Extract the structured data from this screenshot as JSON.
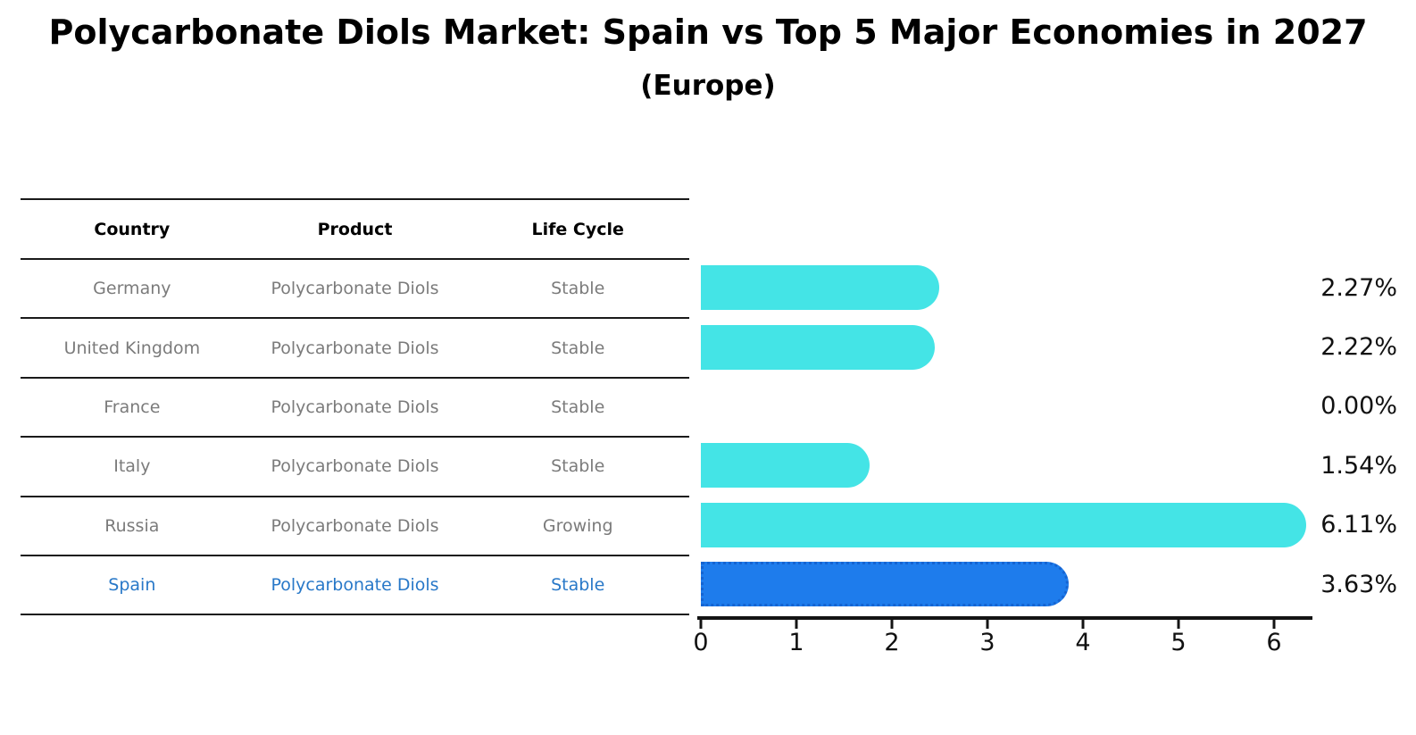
{
  "title": "Polycarbonate Diols Market: Spain vs Top 5 Major Economies in 2027",
  "subtitle": "(Europe)",
  "table": {
    "columns": [
      "Country",
      "Product",
      "Life Cycle"
    ]
  },
  "chart_data": {
    "type": "bar",
    "orientation": "horizontal",
    "title": "Polycarbonate Diols Market: Spain vs Top 5 Major Economies in 2027",
    "subtitle": "(Europe)",
    "x_axis": {
      "tick_labels": [
        "0",
        "1",
        "2",
        "3",
        "4",
        "5",
        "6"
      ],
      "tick_values": [
        0,
        1,
        2,
        3,
        4,
        5,
        6
      ],
      "min": 0,
      "max": 6.4,
      "grid": false
    },
    "rows": [
      {
        "country": "Germany",
        "product": "Polycarbonate Diols",
        "life_cycle": "Stable",
        "value": 2.27,
        "value_label": "2.27%",
        "highlight": false
      },
      {
        "country": "United Kingdom",
        "product": "Polycarbonate Diols",
        "life_cycle": "Stable",
        "value": 2.22,
        "value_label": "2.22%",
        "highlight": false
      },
      {
        "country": "France",
        "product": "Polycarbonate Diols",
        "life_cycle": "Stable",
        "value": 0.0,
        "value_label": "0.00%",
        "highlight": false
      },
      {
        "country": "Italy",
        "product": "Polycarbonate Diols",
        "life_cycle": "Stable",
        "value": 1.54,
        "value_label": "1.54%",
        "highlight": false
      },
      {
        "country": "Russia",
        "product": "Polycarbonate Diols",
        "life_cycle": "Growing",
        "value": 6.11,
        "value_label": "6.11%",
        "highlight": false
      },
      {
        "country": "Spain",
        "product": "Polycarbonate Diols",
        "life_cycle": "Stable",
        "value": 3.63,
        "value_label": "3.63%",
        "highlight": true
      }
    ],
    "colors": {
      "bar": "#44e4e6",
      "highlight_bar": "#1e7cec",
      "highlight_bar_border": "#1564d2",
      "highlight_text": "#2878c8",
      "row_text": "#7b7b7b",
      "axis": "#141414"
    },
    "legend": null
  }
}
